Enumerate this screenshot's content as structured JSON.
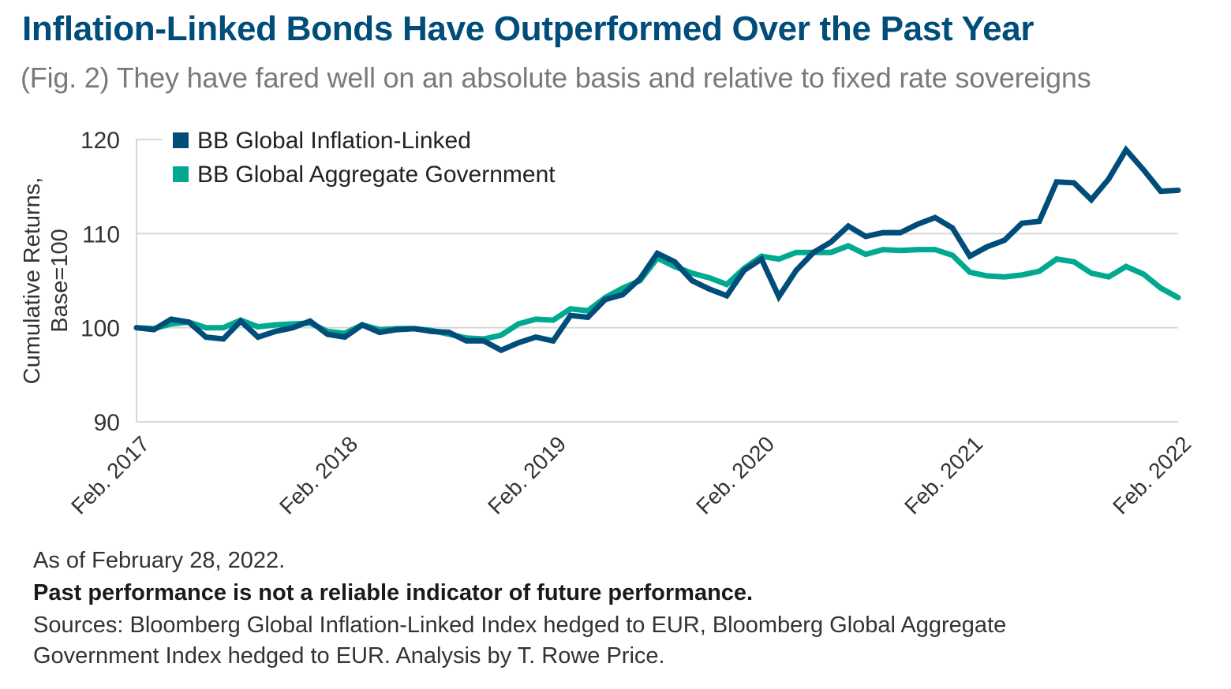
{
  "header": {
    "title": "Inflation-Linked Bonds Have Outperformed Over the Past Year",
    "subtitle": "(Fig. 2) They have fared well on an absolute basis and relative to fixed rate sovereigns"
  },
  "footer": {
    "as_of": "As of February 28, 2022.",
    "disclaimer": "Past performance is not a reliable indicator of future performance.",
    "sources_line1": "Sources: Bloomberg Global Inflation-Linked Index hedged to EUR, Bloomberg Global Aggregate",
    "sources_line2": "Government Index hedged to EUR. Analysis by T. Rowe Price."
  },
  "chart_data": {
    "type": "line",
    "title": "Inflation-Linked Bonds Have Outperformed Over the Past Year",
    "xlabel": "",
    "ylabel_line1": "Cumulative Returns,",
    "ylabel_line2": "Base=100",
    "ylim": [
      90,
      120
    ],
    "yticks": [
      90,
      100,
      110,
      120
    ],
    "ytick_labels": [
      "90",
      "100",
      "110",
      "120"
    ],
    "xtick_labels": [
      "Feb. 2017",
      "Feb. 2018",
      "Feb. 2019",
      "Feb. 2020",
      "Feb. 2021",
      "Feb. 2022"
    ],
    "xtick_index": [
      0,
      12,
      24,
      36,
      48,
      60
    ],
    "x_start": "Feb. 2017",
    "x_end": "Feb. 2022",
    "frequency": "monthly",
    "grid": "horizontal",
    "legend_position": "top-left",
    "series": [
      {
        "name": "BB Global Inflation-Linked",
        "color": "#004d7a",
        "values": [
          100.0,
          99.8,
          100.9,
          100.6,
          99.0,
          98.8,
          100.7,
          99.0,
          99.6,
          100.0,
          100.7,
          99.3,
          99.0,
          100.3,
          99.5,
          99.8,
          99.9,
          99.6,
          99.5,
          98.6,
          98.6,
          97.6,
          98.4,
          99.0,
          98.6,
          101.3,
          101.1,
          103.0,
          103.5,
          105.2,
          107.9,
          107.0,
          105.0,
          104.1,
          103.4,
          106.1,
          107.3,
          103.3,
          106.1,
          108.0,
          109.1,
          110.8,
          109.7,
          110.1,
          110.1,
          111.0,
          111.7,
          110.6,
          107.6,
          108.6,
          109.3,
          111.1,
          111.3,
          115.5,
          115.4,
          113.6,
          115.8,
          118.9,
          116.8,
          114.5,
          114.6
        ]
      },
      {
        "name": "BB Global Aggregate Government",
        "color": "#00a98f",
        "values": [
          100.0,
          99.9,
          100.4,
          100.6,
          100.0,
          100.0,
          100.8,
          100.1,
          100.3,
          100.4,
          100.5,
          99.6,
          99.4,
          100.3,
          99.8,
          99.9,
          99.9,
          99.7,
          99.3,
          98.9,
          98.8,
          99.2,
          100.4,
          100.9,
          100.8,
          102.0,
          101.8,
          103.2,
          104.2,
          105.0,
          107.4,
          106.5,
          105.8,
          105.3,
          104.6,
          106.3,
          107.6,
          107.3,
          108.0,
          108.0,
          108.0,
          108.7,
          107.8,
          108.3,
          108.2,
          108.3,
          108.3,
          107.7,
          105.9,
          105.5,
          105.4,
          105.6,
          106.0,
          107.3,
          107.0,
          105.8,
          105.4,
          106.5,
          105.7,
          104.2,
          103.2
        ]
      }
    ]
  }
}
